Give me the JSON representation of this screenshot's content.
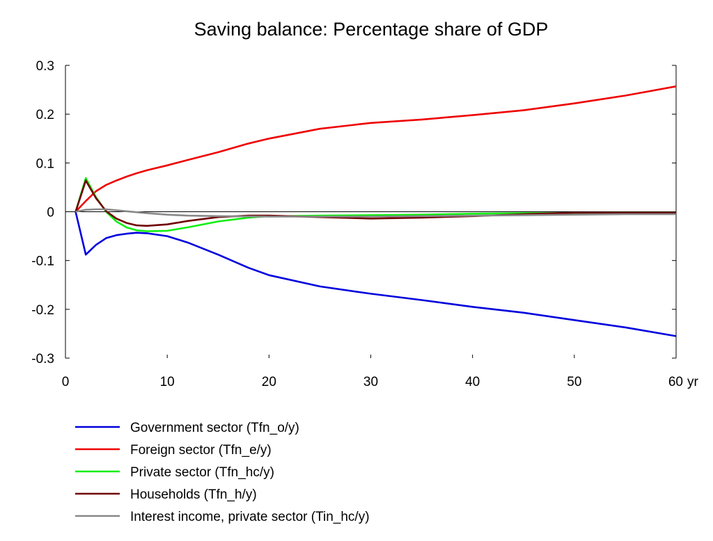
{
  "chart_data": {
    "type": "line",
    "title": "Saving balance: Percentage share of GDP",
    "xlabel": "",
    "ylabel": "",
    "xlim": [
      0,
      60
    ],
    "ylim": [
      -0.3,
      0.3
    ],
    "x_ticks": [
      0,
      10,
      20,
      30,
      40,
      50,
      60
    ],
    "x_tick_labels": [
      "0",
      "10",
      "20",
      "30",
      "40",
      "50",
      "60"
    ],
    "x_unit": "yr",
    "y_ticks": [
      0.3,
      0.2,
      0.1,
      0,
      -0.1,
      -0.2,
      -0.3
    ],
    "y_tick_labels": [
      "0.3",
      "0.2",
      "0.1",
      "0",
      "-0.1",
      "-0.2",
      "-0.3"
    ],
    "zero_line": true,
    "grid": false,
    "legend_position": "bottom-left",
    "series": [
      {
        "name": "Government sector (Tfn_o/y)",
        "color": "#0000dd",
        "points": [
          [
            1,
            0
          ],
          [
            2,
            -0.088
          ],
          [
            3,
            -0.068
          ],
          [
            4,
            -0.054
          ],
          [
            5,
            -0.048
          ],
          [
            6,
            -0.045
          ],
          [
            7,
            -0.043
          ],
          [
            8,
            -0.044
          ],
          [
            10,
            -0.05
          ],
          [
            12,
            -0.063
          ],
          [
            15,
            -0.088
          ],
          [
            18,
            -0.115
          ],
          [
            20,
            -0.13
          ],
          [
            25,
            -0.153
          ],
          [
            30,
            -0.168
          ],
          [
            35,
            -0.181
          ],
          [
            40,
            -0.195
          ],
          [
            45,
            -0.207
          ],
          [
            50,
            -0.222
          ],
          [
            55,
            -0.237
          ],
          [
            60,
            -0.255
          ]
        ]
      },
      {
        "name": "Foreign sector (Tfn_e/y)",
        "color": "#ee0000",
        "points": [
          [
            1,
            0
          ],
          [
            2,
            0.022
          ],
          [
            3,
            0.042
          ],
          [
            4,
            0.055
          ],
          [
            5,
            0.064
          ],
          [
            6,
            0.072
          ],
          [
            7,
            0.079
          ],
          [
            8,
            0.085
          ],
          [
            10,
            0.095
          ],
          [
            12,
            0.106
          ],
          [
            15,
            0.122
          ],
          [
            18,
            0.14
          ],
          [
            20,
            0.15
          ],
          [
            25,
            0.17
          ],
          [
            30,
            0.182
          ],
          [
            35,
            0.189
          ],
          [
            40,
            0.198
          ],
          [
            45,
            0.208
          ],
          [
            50,
            0.222
          ],
          [
            55,
            0.238
          ],
          [
            60,
            0.257
          ]
        ]
      },
      {
        "name": "Private sector (Tfn_hc/y)",
        "color": "#11ee11",
        "points": [
          [
            1,
            0
          ],
          [
            2,
            0.069
          ],
          [
            3,
            0.03
          ],
          [
            4,
            0
          ],
          [
            5,
            -0.02
          ],
          [
            6,
            -0.032
          ],
          [
            7,
            -0.038
          ],
          [
            8,
            -0.04
          ],
          [
            10,
            -0.039
          ],
          [
            12,
            -0.032
          ],
          [
            15,
            -0.02
          ],
          [
            18,
            -0.012
          ],
          [
            20,
            -0.009
          ],
          [
            22,
            -0.009
          ],
          [
            25,
            -0.008
          ],
          [
            30,
            -0.007
          ],
          [
            35,
            -0.006
          ],
          [
            40,
            -0.004
          ],
          [
            45,
            -0.003
          ],
          [
            50,
            -0.003
          ],
          [
            55,
            -0.002
          ],
          [
            60,
            -0.002
          ]
        ]
      },
      {
        "name": "Households (Tfn_h/y)",
        "color": "#700000",
        "points": [
          [
            1,
            0
          ],
          [
            2,
            0.064
          ],
          [
            3,
            0.028
          ],
          [
            4,
            0.001
          ],
          [
            5,
            -0.014
          ],
          [
            6,
            -0.023
          ],
          [
            7,
            -0.028
          ],
          [
            8,
            -0.029
          ],
          [
            10,
            -0.026
          ],
          [
            12,
            -0.019
          ],
          [
            15,
            -0.011
          ],
          [
            18,
            -0.008
          ],
          [
            20,
            -0.008
          ],
          [
            25,
            -0.011
          ],
          [
            30,
            -0.014
          ],
          [
            35,
            -0.012
          ],
          [
            40,
            -0.009
          ],
          [
            45,
            -0.005
          ],
          [
            50,
            -0.002
          ],
          [
            55,
            -0.002
          ],
          [
            60,
            -0.002
          ]
        ]
      },
      {
        "name": "Interest income, private sector (Tin_hc/y)",
        "color": "#888888",
        "points": [
          [
            1,
            0
          ],
          [
            2,
            0.004
          ],
          [
            3,
            0.005
          ],
          [
            4,
            0.005
          ],
          [
            5,
            0.003
          ],
          [
            6,
            0.001
          ],
          [
            7,
            -0.001
          ],
          [
            8,
            -0.003
          ],
          [
            10,
            -0.006
          ],
          [
            12,
            -0.008
          ],
          [
            15,
            -0.009
          ],
          [
            20,
            -0.01
          ],
          [
            25,
            -0.01
          ],
          [
            30,
            -0.01
          ],
          [
            35,
            -0.009
          ],
          [
            40,
            -0.008
          ],
          [
            45,
            -0.007
          ],
          [
            50,
            -0.006
          ],
          [
            55,
            -0.005
          ],
          [
            60,
            -0.005
          ]
        ]
      }
    ]
  }
}
